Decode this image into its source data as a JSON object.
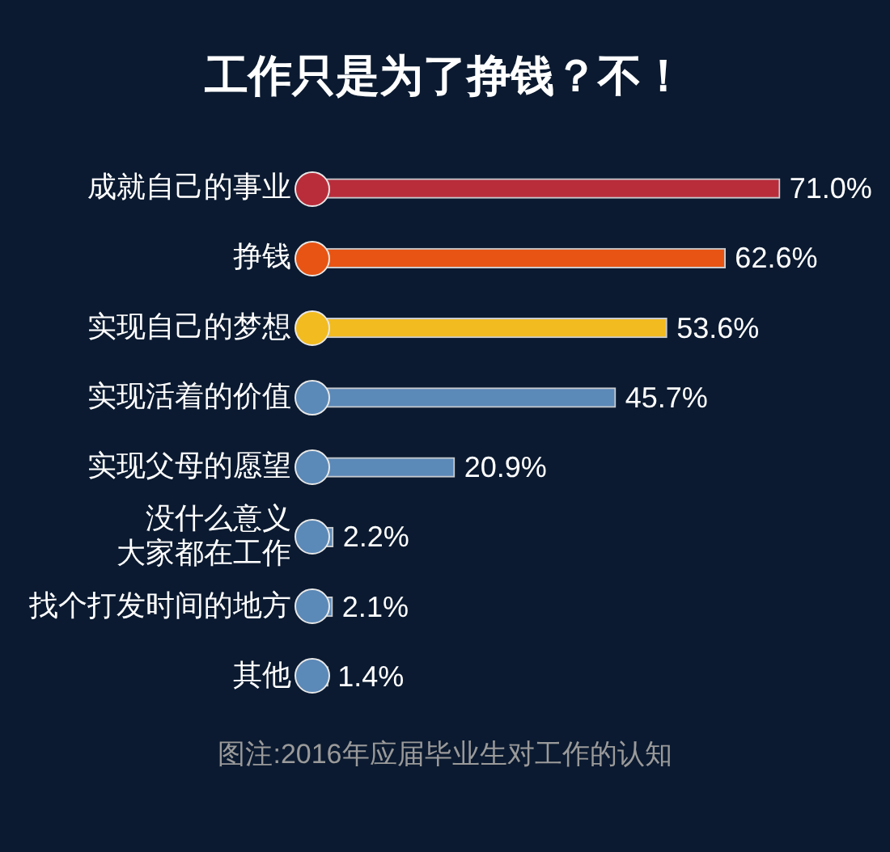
{
  "chart_data": {
    "type": "bar",
    "orientation": "horizontal",
    "title": "工作只是为了挣钱？不！",
    "categories": [
      "成就自己的事业",
      "挣钱",
      "实现自己的梦想",
      "实现活着的价值",
      "实现父母的愿望",
      "没什么意义大家都在工作",
      "找个打发时间的地方",
      "其他"
    ],
    "values": [
      71.0,
      62.6,
      53.6,
      45.7,
      20.9,
      2.2,
      2.1,
      1.4
    ],
    "colors": [
      "#b92d3b",
      "#e85413",
      "#f2bb1f",
      "#5b89b8",
      "#5b89b8",
      "#5b89b8",
      "#5b89b8",
      "#5b89b8"
    ],
    "value_labels": [
      "71.0%",
      "62.6%",
      "53.6%",
      "45.7%",
      "20.9%",
      "2.2%",
      "2.1%",
      "1.4%"
    ],
    "tick_labels": "y",
    "annotations": [
      "图注:2016年应届毕业生对工作的认知"
    ]
  }
}
